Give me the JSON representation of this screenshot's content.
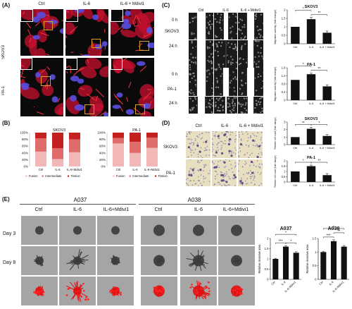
{
  "panels": {
    "A": {
      "label": "(A)",
      "conditions": [
        "Ctrl",
        "IL-6",
        "IL-6 + Mdivi1"
      ],
      "rows": [
        "SKOV3",
        "PA-1"
      ]
    },
    "B": {
      "label": "(B)",
      "legend": [
        "Fusion",
        "Intermediate",
        "Fission"
      ],
      "colors": {
        "fusion": "#f2b8b8",
        "intermediate": "#e06b6b",
        "fission": "#c42020"
      }
    },
    "C": {
      "label": "(C)",
      "conditions": [
        "Ctrl",
        "IL-6",
        "IL-6 + Mdivi1"
      ],
      "rows": [
        "SKOV3",
        "PA-1"
      ],
      "times": [
        "0 h",
        "24 h"
      ]
    },
    "D": {
      "label": "(D)",
      "conditions": [
        "Ctrl",
        "IL-6",
        "IL-6 + Mdivi1"
      ],
      "rows": [
        "SKOV3",
        "PA-1"
      ]
    },
    "E": {
      "label": "(E)",
      "groups": [
        "A037",
        "A038"
      ],
      "conditions": [
        "Ctrl",
        "IL-6",
        "IL-6+Mdivi1"
      ],
      "rows": [
        "Day 3",
        "Day 8"
      ]
    }
  },
  "chart_data": [
    {
      "id": "B-SKOV3",
      "type": "bar",
      "stacked": true,
      "title": "SKOV3",
      "categories": [
        "Ctrl",
        "IL-6",
        "IL-6+Mdivi1"
      ],
      "yticks": [
        "0%",
        "20%",
        "40%",
        "60%",
        "80%",
        "100%"
      ],
      "ylim": [
        0,
        100
      ],
      "series": [
        {
          "name": "Fusion",
          "values": [
            44,
            22,
            42
          ]
        },
        {
          "name": "Intermediate",
          "values": [
            39,
            32,
            38
          ]
        },
        {
          "name": "Fission",
          "values": [
            17,
            46,
            20
          ]
        }
      ]
    },
    {
      "id": "B-PA1",
      "type": "bar",
      "stacked": true,
      "title": "PA-1",
      "categories": [
        "Ctrl",
        "IL-6",
        "IL-6+Mdivi1"
      ],
      "yticks": [
        "0%",
        "20%",
        "40%",
        "60%",
        "80%",
        "100%"
      ],
      "ylim": [
        0,
        100
      ],
      "series": [
        {
          "name": "Fusion",
          "values": [
            68,
            40,
            55
          ]
        },
        {
          "name": "Intermediate",
          "values": [
            16,
            33,
            30
          ]
        },
        {
          "name": "Fission",
          "values": [
            16,
            27,
            15
          ]
        }
      ]
    },
    {
      "id": "C-SKOV3",
      "type": "bar",
      "title": "SKOV3",
      "categories": [
        "Ctrl",
        "IL-6",
        "IL-6 + Mdivi1"
      ],
      "values": [
        1.0,
        1.45,
        0.65
      ],
      "errors": [
        0,
        0.1,
        0.1
      ],
      "ylabel": "Migration activity (fold change)",
      "ylim": [
        0,
        2.0
      ],
      "yticks": [
        0,
        0.5,
        1.0,
        1.5,
        2.0
      ],
      "significance": [
        "*",
        "**"
      ]
    },
    {
      "id": "C-PA1",
      "type": "bar",
      "title": "PA-1",
      "categories": [
        "Ctrl",
        "IL-6",
        "IL-6 + Mdivi1"
      ],
      "values": [
        1.0,
        1.28,
        0.68
      ],
      "errors": [
        0,
        0.05,
        0.08
      ],
      "ylabel": "Migration activity (fold change)",
      "ylim": [
        0,
        1.6
      ],
      "yticks": [
        0,
        0.4,
        0.8,
        1.2,
        1.6
      ],
      "significance": [
        "*",
        "**"
      ]
    },
    {
      "id": "D-SKOV3",
      "type": "bar",
      "title": "SKOV3",
      "categories": [
        "Ctrl",
        "IL-6",
        "IL-6 + Mdivi1"
      ],
      "values": [
        1.0,
        2.1,
        1.15
      ],
      "errors": [
        0,
        0.2,
        0.2
      ],
      "ylabel": "Relative cell count (fold change)",
      "ylim": [
        0,
        3
      ],
      "yticks": [
        0,
        1,
        2,
        3
      ],
      "significance": [
        "**",
        "*"
      ]
    },
    {
      "id": "D-PA1",
      "type": "bar",
      "title": "PA-1",
      "categories": [
        "Ctrl",
        "IL-6",
        "IL-6 + Mdivi1"
      ],
      "values": [
        1.0,
        1.5,
        0.65
      ],
      "errors": [
        0,
        0.1,
        0.15
      ],
      "ylabel": "Relative cell count (fold change)",
      "ylim": [
        0,
        2.0
      ],
      "yticks": [
        0,
        0.5,
        1.0,
        1.5,
        2.0
      ],
      "significance": [
        "*",
        "**"
      ]
    },
    {
      "id": "E-A037",
      "type": "bar",
      "title": "A037",
      "categories": [
        "Ctrl",
        "IL-6",
        "IL-6+Mdivi1"
      ],
      "values": [
        1.0,
        1.6,
        1.3
      ],
      "errors": [
        0.03,
        0.05,
        0.05
      ],
      "ylabel": "Relative invasive area",
      "ylim": [
        0,
        2.0
      ],
      "yticks": [
        0,
        0.5,
        1.0,
        1.5,
        2.0
      ],
      "significance": [
        "***",
        "*",
        "*"
      ]
    },
    {
      "id": "E-A038",
      "type": "bar",
      "title": "A038",
      "categories": [
        "Ctrl",
        "IL-6",
        "IL-6+Mdivi1"
      ],
      "values": [
        1.0,
        1.4,
        1.2
      ],
      "errors": [
        0.03,
        0.05,
        0.04
      ],
      "ylabel": "Relative invasive area",
      "ylim": [
        0,
        1.5
      ],
      "yticks": [
        0,
        0.5,
        1.0,
        1.5
      ],
      "significance": [
        "***",
        "**",
        "*"
      ]
    }
  ]
}
